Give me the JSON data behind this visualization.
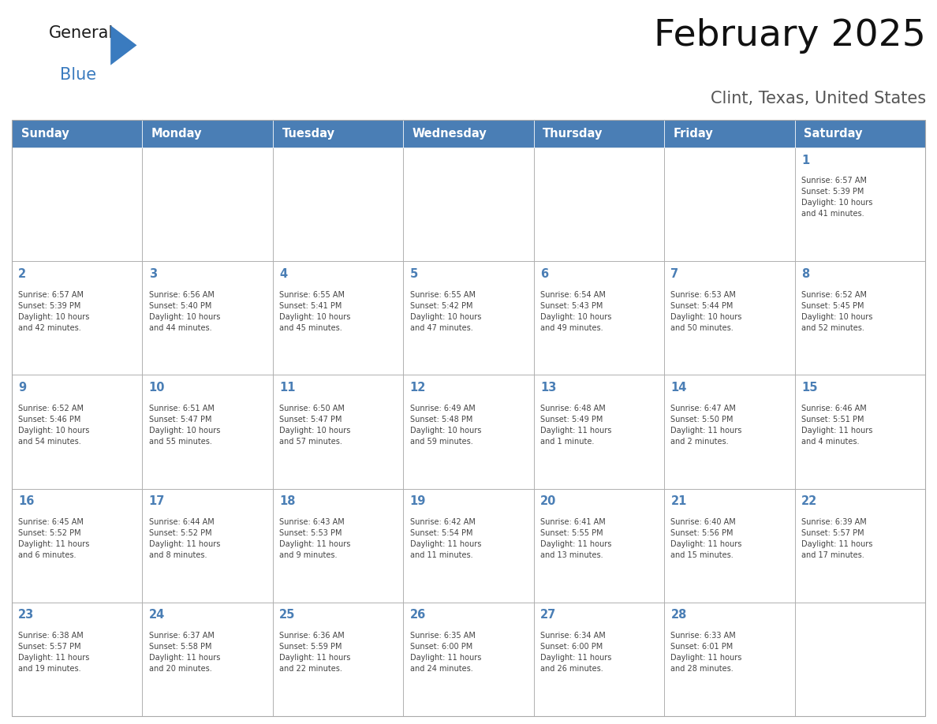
{
  "title": "February 2025",
  "subtitle": "Clint, Texas, United States",
  "days_of_week": [
    "Sunday",
    "Monday",
    "Tuesday",
    "Wednesday",
    "Thursday",
    "Friday",
    "Saturday"
  ],
  "header_bg": "#4a7eb5",
  "header_text": "#ffffff",
  "cell_bg": "#ffffff",
  "day_num_color": "#4a7eb5",
  "text_color": "#444444",
  "border_color": "#aaaaaa",
  "logo_general_color": "#1a1a1a",
  "logo_blue_color": "#3a7bbf",
  "week_rows": [
    [
      {
        "day": null,
        "info": null
      },
      {
        "day": null,
        "info": null
      },
      {
        "day": null,
        "info": null
      },
      {
        "day": null,
        "info": null
      },
      {
        "day": null,
        "info": null
      },
      {
        "day": null,
        "info": null
      },
      {
        "day": 1,
        "info": "Sunrise: 6:57 AM\nSunset: 5:39 PM\nDaylight: 10 hours\nand 41 minutes."
      }
    ],
    [
      {
        "day": 2,
        "info": "Sunrise: 6:57 AM\nSunset: 5:39 PM\nDaylight: 10 hours\nand 42 minutes."
      },
      {
        "day": 3,
        "info": "Sunrise: 6:56 AM\nSunset: 5:40 PM\nDaylight: 10 hours\nand 44 minutes."
      },
      {
        "day": 4,
        "info": "Sunrise: 6:55 AM\nSunset: 5:41 PM\nDaylight: 10 hours\nand 45 minutes."
      },
      {
        "day": 5,
        "info": "Sunrise: 6:55 AM\nSunset: 5:42 PM\nDaylight: 10 hours\nand 47 minutes."
      },
      {
        "day": 6,
        "info": "Sunrise: 6:54 AM\nSunset: 5:43 PM\nDaylight: 10 hours\nand 49 minutes."
      },
      {
        "day": 7,
        "info": "Sunrise: 6:53 AM\nSunset: 5:44 PM\nDaylight: 10 hours\nand 50 minutes."
      },
      {
        "day": 8,
        "info": "Sunrise: 6:52 AM\nSunset: 5:45 PM\nDaylight: 10 hours\nand 52 minutes."
      }
    ],
    [
      {
        "day": 9,
        "info": "Sunrise: 6:52 AM\nSunset: 5:46 PM\nDaylight: 10 hours\nand 54 minutes."
      },
      {
        "day": 10,
        "info": "Sunrise: 6:51 AM\nSunset: 5:47 PM\nDaylight: 10 hours\nand 55 minutes."
      },
      {
        "day": 11,
        "info": "Sunrise: 6:50 AM\nSunset: 5:47 PM\nDaylight: 10 hours\nand 57 minutes."
      },
      {
        "day": 12,
        "info": "Sunrise: 6:49 AM\nSunset: 5:48 PM\nDaylight: 10 hours\nand 59 minutes."
      },
      {
        "day": 13,
        "info": "Sunrise: 6:48 AM\nSunset: 5:49 PM\nDaylight: 11 hours\nand 1 minute."
      },
      {
        "day": 14,
        "info": "Sunrise: 6:47 AM\nSunset: 5:50 PM\nDaylight: 11 hours\nand 2 minutes."
      },
      {
        "day": 15,
        "info": "Sunrise: 6:46 AM\nSunset: 5:51 PM\nDaylight: 11 hours\nand 4 minutes."
      }
    ],
    [
      {
        "day": 16,
        "info": "Sunrise: 6:45 AM\nSunset: 5:52 PM\nDaylight: 11 hours\nand 6 minutes."
      },
      {
        "day": 17,
        "info": "Sunrise: 6:44 AM\nSunset: 5:52 PM\nDaylight: 11 hours\nand 8 minutes."
      },
      {
        "day": 18,
        "info": "Sunrise: 6:43 AM\nSunset: 5:53 PM\nDaylight: 11 hours\nand 9 minutes."
      },
      {
        "day": 19,
        "info": "Sunrise: 6:42 AM\nSunset: 5:54 PM\nDaylight: 11 hours\nand 11 minutes."
      },
      {
        "day": 20,
        "info": "Sunrise: 6:41 AM\nSunset: 5:55 PM\nDaylight: 11 hours\nand 13 minutes."
      },
      {
        "day": 21,
        "info": "Sunrise: 6:40 AM\nSunset: 5:56 PM\nDaylight: 11 hours\nand 15 minutes."
      },
      {
        "day": 22,
        "info": "Sunrise: 6:39 AM\nSunset: 5:57 PM\nDaylight: 11 hours\nand 17 minutes."
      }
    ],
    [
      {
        "day": 23,
        "info": "Sunrise: 6:38 AM\nSunset: 5:57 PM\nDaylight: 11 hours\nand 19 minutes."
      },
      {
        "day": 24,
        "info": "Sunrise: 6:37 AM\nSunset: 5:58 PM\nDaylight: 11 hours\nand 20 minutes."
      },
      {
        "day": 25,
        "info": "Sunrise: 6:36 AM\nSunset: 5:59 PM\nDaylight: 11 hours\nand 22 minutes."
      },
      {
        "day": 26,
        "info": "Sunrise: 6:35 AM\nSunset: 6:00 PM\nDaylight: 11 hours\nand 24 minutes."
      },
      {
        "day": 27,
        "info": "Sunrise: 6:34 AM\nSunset: 6:00 PM\nDaylight: 11 hours\nand 26 minutes."
      },
      {
        "day": 28,
        "info": "Sunrise: 6:33 AM\nSunset: 6:01 PM\nDaylight: 11 hours\nand 28 minutes."
      },
      {
        "day": null,
        "info": null
      }
    ]
  ],
  "figsize": [
    11.88,
    9.18
  ],
  "dpi": 100
}
